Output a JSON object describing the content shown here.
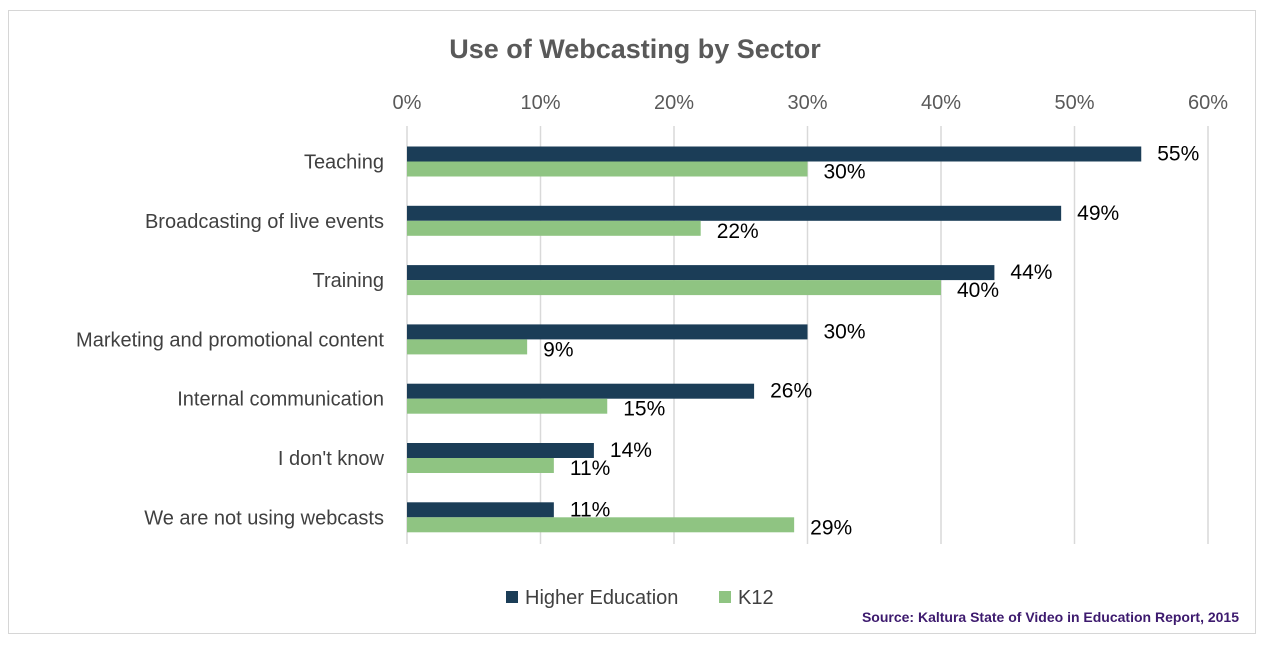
{
  "chart_data": {
    "type": "bar",
    "orientation": "horizontal",
    "title": "Use of Webcasting by Sector",
    "categories": [
      "Teaching",
      "Broadcasting of live events",
      "Training",
      "Marketing and promotional content",
      "Internal communication",
      "I don't know",
      "We are not using webcasts"
    ],
    "series": [
      {
        "name": "Higher Education",
        "color": "#1b3d57",
        "values": [
          55,
          49,
          44,
          30,
          26,
          14,
          11
        ]
      },
      {
        "name": "K12",
        "color": "#8fc482",
        "values": [
          30,
          22,
          40,
          9,
          15,
          11,
          29
        ]
      }
    ],
    "xlim": [
      0,
      60
    ],
    "xticks": [
      0,
      10,
      20,
      30,
      40,
      50,
      60
    ],
    "xtick_labels": [
      "0%",
      "10%",
      "20%",
      "30%",
      "40%",
      "50%",
      "60%"
    ],
    "value_suffix": "%",
    "axis_position": "top",
    "grid": true,
    "legend_position": "bottom-center",
    "xlabel": "",
    "ylabel": ""
  },
  "source": "Source: Kaltura State of Video in Education Report, 2015"
}
